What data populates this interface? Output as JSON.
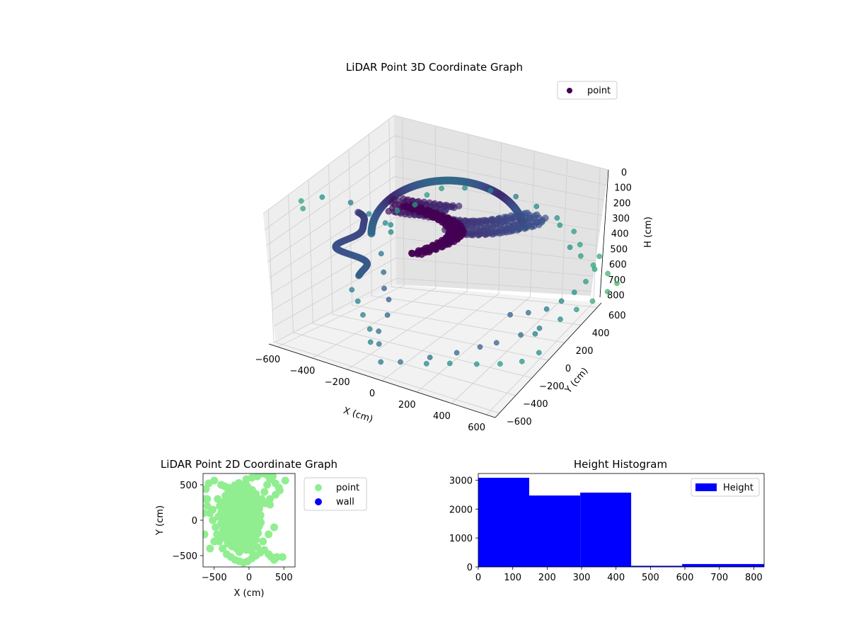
{
  "chart_data": [
    {
      "type": "scatter",
      "projection": "3d",
      "title": "LiDAR Point 3D Coordinate Graph",
      "xlabel": "X (cm)",
      "ylabel": "Y (cm)",
      "zlabel": "H (cm)",
      "xticks": [
        -600,
        -400,
        -200,
        0,
        200,
        400,
        600
      ],
      "yticks": [
        -600,
        -400,
        -200,
        0,
        200,
        400,
        600
      ],
      "zticks": [
        0,
        100,
        200,
        300,
        400,
        500,
        600,
        700,
        800
      ],
      "xlim": [
        -650,
        650
      ],
      "ylim": [
        -650,
        650
      ],
      "zlim": [
        0,
        830
      ],
      "z_inverted": true,
      "grid": true,
      "colormap": "viridis",
      "legend": {
        "placement": "upper-right",
        "entries": [
          {
            "label": "point",
            "color": "#440154"
          }
        ]
      },
      "series": [
        {
          "name": "point",
          "points": [
            [
              -620,
              -200,
              40
            ],
            [
              -600,
              60,
              140
            ],
            [
              -560,
              180,
              230
            ],
            [
              -520,
              280,
              300
            ],
            [
              -590,
              -450,
              30
            ],
            [
              -640,
              -380,
              20
            ],
            [
              -500,
              300,
              310
            ],
            [
              -470,
              250,
              330
            ],
            [
              -450,
              120,
              420
            ],
            [
              -400,
              60,
              500
            ],
            [
              -350,
              -20,
              560
            ],
            [
              -300,
              -60,
              600
            ],
            [
              -250,
              -160,
              650
            ],
            [
              -220,
              -300,
              700
            ],
            [
              -150,
              -420,
              720
            ],
            [
              -60,
              -560,
              760
            ],
            [
              30,
              -520,
              740
            ],
            [
              120,
              -380,
              720
            ],
            [
              200,
              -250,
              700
            ],
            [
              260,
              -120,
              680
            ],
            [
              320,
              -60,
              650
            ],
            [
              380,
              80,
              620
            ],
            [
              430,
              180,
              590
            ],
            [
              470,
              320,
              560
            ],
            [
              500,
              430,
              520
            ],
            [
              540,
              520,
              480
            ],
            [
              580,
              600,
              430
            ],
            [
              610,
              640,
              380
            ],
            [
              600,
              560,
              300
            ],
            [
              560,
              480,
              240
            ],
            [
              520,
              420,
              180
            ],
            [
              490,
              360,
              120
            ],
            [
              620,
              430,
              150
            ],
            [
              640,
              350,
              200
            ],
            [
              630,
              280,
              260
            ],
            [
              600,
              220,
              320
            ],
            [
              550,
              180,
              380
            ],
            [
              500,
              120,
              430
            ],
            [
              430,
              60,
              460
            ],
            [
              360,
              0,
              480
            ],
            [
              -380,
              -300,
              500
            ],
            [
              -300,
              -380,
              520
            ],
            [
              -230,
              -450,
              560
            ],
            [
              -150,
              -520,
              600
            ],
            [
              -100,
              -600,
              640
            ],
            [
              200,
              -560,
              680
            ],
            [
              300,
              -500,
              660
            ],
            [
              420,
              -440,
              640
            ],
            [
              520,
              -380,
              620
            ],
            [
              600,
              -300,
              600
            ],
            [
              640,
              -200,
              560
            ],
            [
              560,
              -100,
              500
            ],
            [
              -520,
              400,
              260
            ],
            [
              -460,
              470,
              220
            ],
            [
              -420,
              520,
              160
            ],
            [
              -360,
              560,
              110
            ],
            [
              -250,
              600,
              80
            ],
            [
              -120,
              630,
              60
            ],
            [
              20,
              640,
              50
            ],
            [
              150,
              620,
              60
            ],
            [
              280,
              600,
              80
            ],
            [
              400,
              560,
              110
            ],
            [
              470,
              500,
              150
            ],
            [
              330,
              540,
              90
            ]
          ]
        }
      ]
    },
    {
      "type": "scatter",
      "title": "LiDAR Point 2D Coordinate Graph",
      "xlabel": "X (cm)",
      "ylabel": "Y (cm)",
      "xticks": [
        -500,
        0,
        500
      ],
      "yticks": [
        -500,
        0,
        500
      ],
      "xlim": [
        -660,
        660
      ],
      "ylim": [
        -660,
        660
      ],
      "legend": {
        "placement": "outside-right",
        "entries": [
          {
            "label": "point",
            "color": "#90ee90"
          },
          {
            "label": "wall",
            "color": "#0000ff"
          }
        ]
      },
      "series": [
        {
          "name": "point",
          "color": "#90ee90",
          "x": [
            -500,
            -580,
            -620,
            -640,
            -600,
            -560,
            -520,
            -480,
            -460,
            -430,
            -380,
            -320,
            -260,
            -200,
            -140,
            -80,
            -20,
            40,
            100,
            160,
            220,
            280,
            320,
            360,
            400,
            480,
            520,
            -400,
            -350,
            -300,
            -250,
            -200,
            -150,
            -100,
            -50,
            0,
            50,
            100,
            150,
            200,
            250,
            300,
            -450,
            -420,
            -380,
            -340,
            -300,
            -260,
            -220,
            -180,
            -140,
            -100,
            -60,
            -20,
            20,
            60,
            100,
            140,
            180,
            220,
            260,
            300,
            340,
            -520,
            -440,
            -360,
            -280,
            -200,
            -120,
            -40,
            40,
            120,
            200,
            280,
            360,
            -500,
            -420,
            -340,
            -260,
            -180,
            -100,
            -20,
            60,
            140,
            220,
            300,
            380,
            440,
            -600,
            -650,
            -640,
            -560,
            430,
            380,
            320,
            260,
            200,
            120,
            40,
            -40
          ],
          "y": [
            560,
            520,
            440,
            300,
            200,
            100,
            0,
            -100,
            -200,
            -300,
            -400,
            -480,
            -520,
            -560,
            -580,
            -600,
            -580,
            -540,
            -500,
            -460,
            -420,
            -480,
            -520,
            -560,
            -520,
            -520,
            560,
            500,
            480,
            460,
            440,
            420,
            400,
            380,
            360,
            340,
            320,
            300,
            280,
            260,
            240,
            220,
            300,
            200,
            100,
            0,
            -100,
            -200,
            -300,
            -400,
            -450,
            -380,
            -300,
            -200,
            -100,
            0,
            100,
            200,
            300,
            400,
            500,
            580,
            620,
            150,
            50,
            -50,
            -150,
            -250,
            -350,
            -420,
            -440,
            -380,
            -300,
            -200,
            -100,
            -300,
            -250,
            -180,
            -120,
            -60,
            0,
            60,
            120,
            180,
            240,
            300,
            360,
            420,
            300,
            100,
            -200,
            -400,
            460,
            520,
            580,
            640,
            660,
            620,
            600,
            580
          ]
        }
      ]
    },
    {
      "type": "bar",
      "subtype": "histogram",
      "title": "Height Histogram",
      "xlabel": "",
      "ylabel": "",
      "bins": [
        [
          0,
          148
        ],
        [
          148,
          296
        ],
        [
          296,
          444
        ],
        [
          444,
          592
        ],
        [
          592,
          830
        ]
      ],
      "values": [
        3080,
        2470,
        2570,
        40,
        100
      ],
      "xticks": [
        0,
        100,
        200,
        300,
        400,
        500,
        600,
        700,
        800
      ],
      "yticks": [
        0,
        1000,
        2000,
        3000
      ],
      "xlim": [
        0,
        830
      ],
      "ylim": [
        0,
        3230
      ],
      "color": "#0000ff",
      "legend": {
        "placement": "upper-right",
        "entries": [
          {
            "label": "Height",
            "color": "#0000ff"
          }
        ]
      }
    }
  ]
}
